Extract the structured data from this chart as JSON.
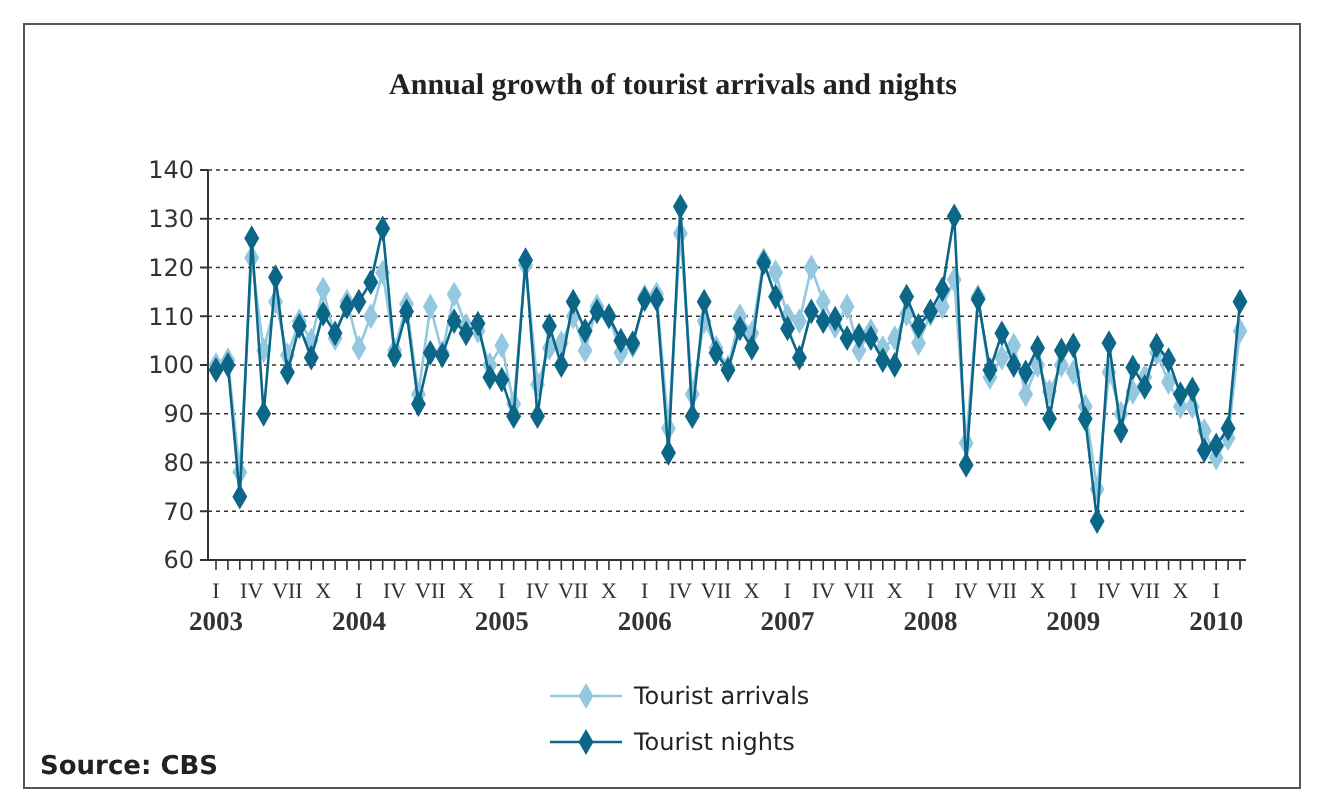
{
  "chart_data": {
    "type": "line",
    "title": "Annual growth of tourist arrivals and nights",
    "categories": [
      "I\n2003",
      null,
      null,
      "IV",
      null,
      null,
      "VII",
      null,
      null,
      "X",
      null,
      null,
      "I\n2004",
      null,
      null,
      "IV",
      null,
      null,
      "VII",
      null,
      null,
      "X",
      null,
      null,
      "I\n2005",
      null,
      null,
      "IV",
      null,
      null,
      "VII",
      null,
      null,
      "X",
      null,
      null,
      "I\n2006",
      null,
      null,
      "IV",
      null,
      null,
      "VII",
      null,
      null,
      "X",
      null,
      null,
      "I\n2007",
      null,
      null,
      "IV",
      null,
      null,
      "VII",
      null,
      null,
      "X",
      null,
      null,
      "I\n2008",
      null,
      null,
      "IV",
      null,
      null,
      "VII",
      null,
      null,
      "X",
      null,
      null,
      "I\n2009",
      null,
      null,
      "IV",
      null,
      null,
      "VII",
      null,
      null,
      "X",
      null,
      null,
      "I\n2010",
      null,
      null
    ],
    "series": [
      {
        "name": "Tourist arrivals",
        "color": "#94c8e0",
        "values": [
          100,
          101,
          78,
          122,
          103,
          113,
          102,
          109,
          105,
          115.5,
          105.5,
          113,
          103.5,
          110,
          119,
          103,
          112.5,
          94,
          112,
          102.5,
          114.5,
          108,
          107,
          100,
          104,
          92,
          120.5,
          96,
          103.5,
          104.5,
          110,
          103,
          112,
          110,
          102.5,
          104,
          114,
          114.5,
          87,
          127,
          94,
          109,
          103.5,
          99.5,
          110,
          106.5,
          121.5,
          119,
          110,
          109,
          120,
          113,
          108,
          112,
          103,
          107,
          103.5,
          105.5,
          110.5,
          104.5,
          110.5,
          112,
          117.5,
          84,
          114,
          97.5,
          101.5,
          104,
          94,
          100,
          94.5,
          100,
          98.5,
          91.5,
          74.5,
          98.5,
          90,
          94.5,
          97.5,
          102.5,
          96.5,
          91.5,
          91.5,
          86.5,
          81,
          85,
          107
        ]
      },
      {
        "name": "Tourist nights",
        "color": "#0b6688",
        "values": [
          99,
          100,
          73,
          126,
          90,
          118,
          98.5,
          108,
          101.5,
          110.5,
          106.5,
          112,
          113,
          117,
          128,
          102,
          111,
          92,
          102.5,
          102,
          109,
          106.5,
          108.5,
          97.5,
          97,
          89.5,
          121.5,
          89.5,
          108,
          100,
          113,
          107,
          111,
          110,
          105,
          104.5,
          113.5,
          113.5,
          82,
          132.5,
          89.5,
          113,
          102.5,
          99,
          107.5,
          103.5,
          121,
          114,
          107.5,
          101.5,
          111,
          109,
          109.5,
          105.5,
          106,
          105.5,
          101,
          100,
          114,
          108,
          111,
          115.5,
          130.5,
          79.5,
          113.5,
          99,
          106.5,
          100,
          98.5,
          103.5,
          89,
          103,
          104,
          89,
          68,
          104.5,
          86.5,
          99.5,
          95.5,
          104,
          101,
          94,
          95,
          82.5,
          83.5,
          87,
          113
        ]
      }
    ],
    "ylim": [
      60,
      140
    ],
    "yticks": [
      60,
      70,
      80,
      90,
      100,
      110,
      120,
      130,
      140
    ],
    "grid": "y",
    "legend": "bottom",
    "marker": "diamond",
    "line_style": "solid",
    "annotations": [
      "Source: CBS"
    ]
  }
}
